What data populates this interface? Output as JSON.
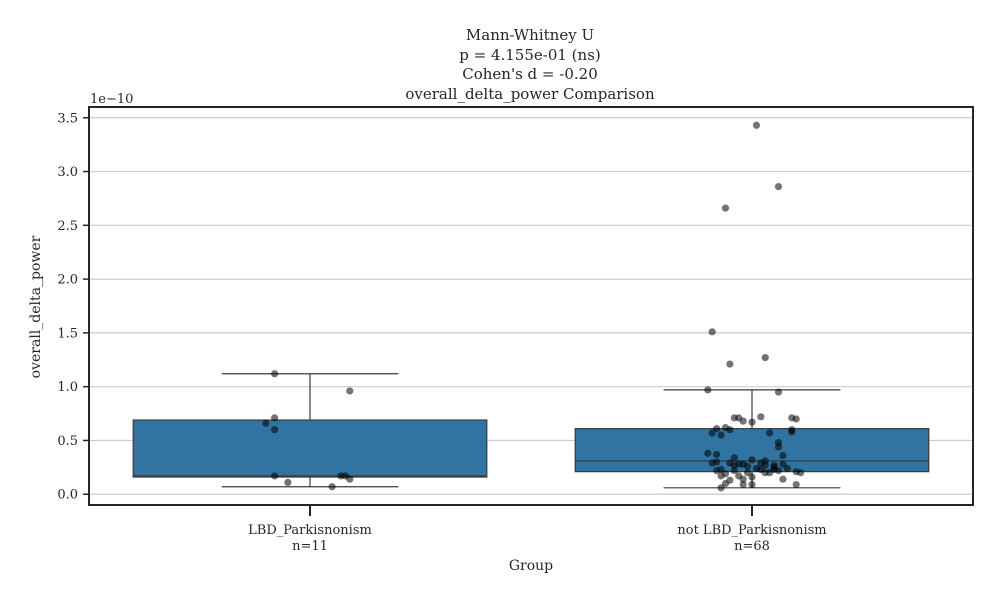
{
  "chart_data": {
    "type": "box",
    "title_lines": [
      "Mann-Whitney U",
      "p = 4.155e-01 (ns)",
      "Cohen's d = -0.20",
      "overall_delta_power Comparison"
    ],
    "xlabel": "Group",
    "ylabel": "overall_delta_power",
    "y_offset_label": "1e−10",
    "y_scale": 1e-10,
    "ylim": [
      -0.1,
      3.6
    ],
    "yticks": [
      0.0,
      0.5,
      1.0,
      1.5,
      2.0,
      2.5,
      3.0,
      3.5
    ],
    "ytick_labels": [
      "0.0",
      "0.5",
      "1.0",
      "1.5",
      "2.0",
      "2.5",
      "3.0",
      "3.5"
    ],
    "grid": true,
    "box_color": "#3274a1",
    "point_color": "#000000",
    "categories": [
      "LBD_Parkisnonism",
      "not LBD_Parkisnonism"
    ],
    "category_counts": [
      "n=11",
      "n=68"
    ],
    "boxes": [
      {
        "name": "LBD_Parkisnonism",
        "whisker_low": 0.07,
        "q1": 0.16,
        "median": 0.17,
        "q3": 0.69,
        "whisker_high": 1.12
      },
      {
        "name": "not LBD_Parkisnonism",
        "whisker_low": 0.06,
        "q1": 0.21,
        "median": 0.31,
        "q3": 0.61,
        "whisker_high": 0.97
      }
    ],
    "points": [
      [
        [
          -0.08,
          1.12
        ],
        [
          0.09,
          0.96
        ],
        [
          -0.08,
          0.71
        ],
        [
          -0.1,
          0.66
        ],
        [
          -0.08,
          0.6
        ],
        [
          -0.08,
          0.17
        ],
        [
          0.07,
          0.17
        ],
        [
          0.08,
          0.17
        ],
        [
          0.09,
          0.14
        ],
        [
          -0.05,
          0.11
        ],
        [
          0.05,
          0.07
        ]
      ],
      [
        [
          0.01,
          3.43
        ],
        [
          0.06,
          2.86
        ],
        [
          -0.06,
          2.66
        ],
        [
          -0.09,
          1.51
        ],
        [
          -0.05,
          1.21
        ],
        [
          0.03,
          1.27
        ],
        [
          -0.1,
          0.97
        ],
        [
          0.06,
          0.95
        ],
        [
          0.09,
          0.71
        ],
        [
          0.1,
          0.7
        ],
        [
          -0.04,
          0.71
        ],
        [
          -0.03,
          0.71
        ],
        [
          0.02,
          0.72
        ],
        [
          -0.02,
          0.68
        ],
        [
          0.0,
          0.67
        ],
        [
          -0.06,
          0.62
        ],
        [
          -0.08,
          0.61
        ],
        [
          -0.05,
          0.6
        ],
        [
          0.09,
          0.6
        ],
        [
          0.09,
          0.58
        ],
        [
          -0.09,
          0.57
        ],
        [
          0.04,
          0.57
        ],
        [
          -0.07,
          0.55
        ],
        [
          0.06,
          0.48
        ],
        [
          0.06,
          0.44
        ],
        [
          -0.1,
          0.38
        ],
        [
          -0.08,
          0.37
        ],
        [
          0.07,
          0.36
        ],
        [
          -0.04,
          0.34
        ],
        [
          0.0,
          0.32
        ],
        [
          0.03,
          0.31
        ],
        [
          -0.08,
          0.3
        ],
        [
          -0.09,
          0.29
        ],
        [
          -0.05,
          0.29
        ],
        [
          -0.02,
          0.28
        ],
        [
          -0.03,
          0.28
        ],
        [
          0.07,
          0.28
        ],
        [
          -0.04,
          0.27
        ],
        [
          0.05,
          0.27
        ],
        [
          0.05,
          0.25
        ],
        [
          0.05,
          0.23
        ],
        [
          0.06,
          0.22
        ],
        [
          -0.07,
          0.23
        ],
        [
          -0.08,
          0.22
        ],
        [
          -0.04,
          0.22
        ],
        [
          0.02,
          0.23
        ],
        [
          0.1,
          0.21
        ],
        [
          0.11,
          0.2
        ],
        [
          -0.01,
          0.2
        ],
        [
          0.03,
          0.2
        ],
        [
          0.04,
          0.2
        ],
        [
          -0.06,
          0.19
        ],
        [
          -0.07,
          0.17
        ],
        [
          -0.03,
          0.17
        ],
        [
          0.0,
          0.16
        ],
        [
          -0.02,
          0.14
        ],
        [
          0.07,
          0.14
        ],
        [
          -0.05,
          0.13
        ],
        [
          0.1,
          0.09
        ],
        [
          -0.02,
          0.09
        ],
        [
          -0.06,
          0.1
        ],
        [
          0.0,
          0.09
        ],
        [
          -0.07,
          0.06
        ],
        [
          0.01,
          0.24
        ],
        [
          -0.01,
          0.26
        ],
        [
          0.03,
          0.27
        ],
        [
          0.08,
          0.24
        ],
        [
          0.02,
          0.29
        ]
      ]
    ]
  }
}
